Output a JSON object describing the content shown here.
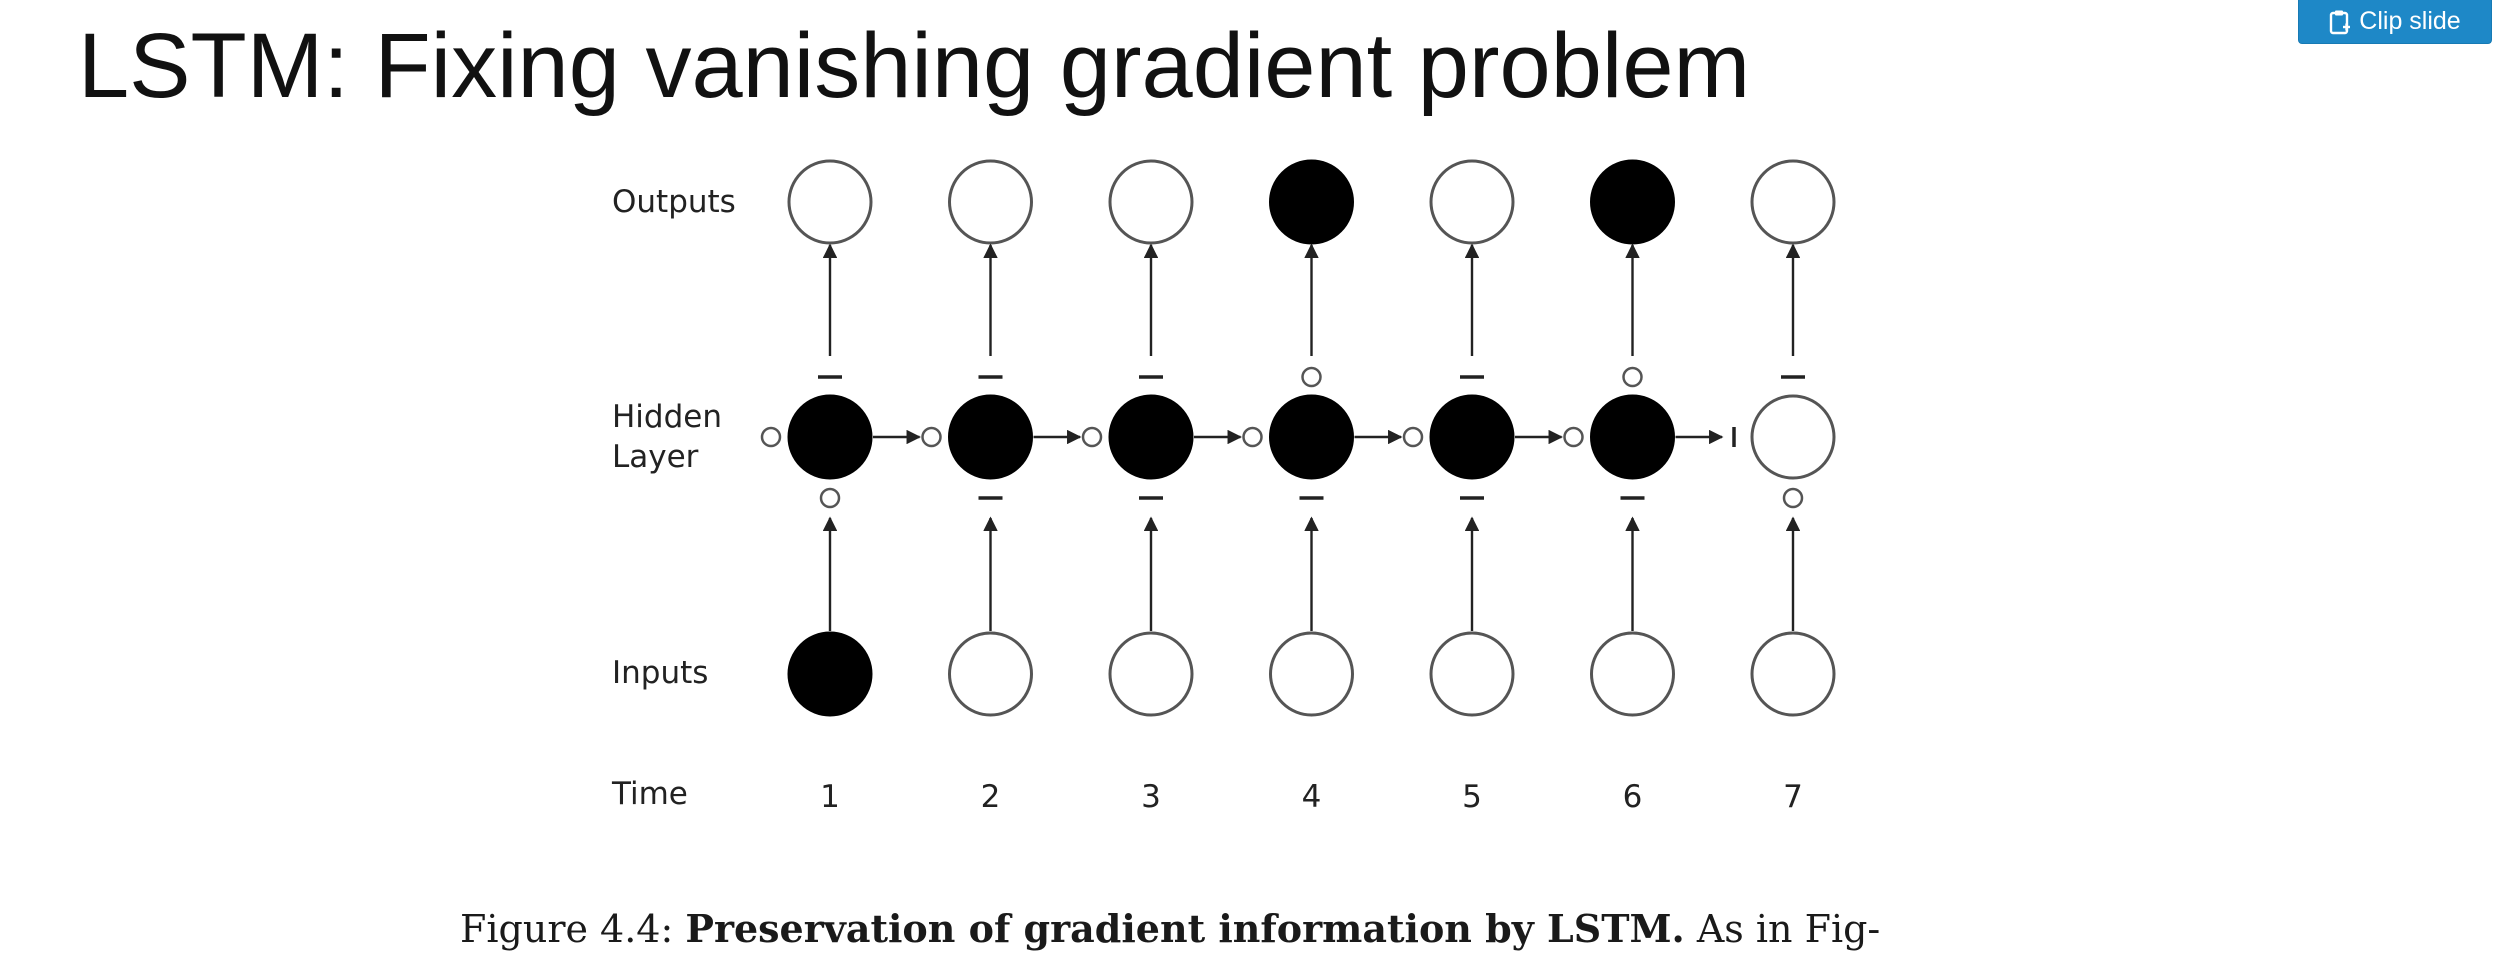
{
  "slide": {
    "title": "LSTM: Fixing vanishing gradient problem"
  },
  "clip_button": {
    "label": "Clip slide",
    "icon": "clipboard-plus-icon",
    "color": "#1e88c7"
  },
  "diagram": {
    "row_labels": {
      "outputs": "Outputs",
      "hidden_line1": "Hidden",
      "hidden_line2": "Layer",
      "inputs": "Inputs",
      "time": "Time"
    },
    "timesteps": [
      {
        "time": "1",
        "output_filled": false,
        "hidden_filled": true,
        "input_filled": true,
        "output_gate": "closed",
        "input_gate": "open",
        "forget_gate": "open"
      },
      {
        "time": "2",
        "output_filled": false,
        "hidden_filled": true,
        "input_filled": false,
        "output_gate": "closed",
        "input_gate": "closed",
        "forget_gate": "open"
      },
      {
        "time": "3",
        "output_filled": false,
        "hidden_filled": true,
        "input_filled": false,
        "output_gate": "closed",
        "input_gate": "closed",
        "forget_gate": "open"
      },
      {
        "time": "4",
        "output_filled": true,
        "hidden_filled": true,
        "input_filled": false,
        "output_gate": "open",
        "input_gate": "closed",
        "forget_gate": "open"
      },
      {
        "time": "5",
        "output_filled": false,
        "hidden_filled": true,
        "input_filled": false,
        "output_gate": "closed",
        "input_gate": "closed",
        "forget_gate": "open"
      },
      {
        "time": "6",
        "output_filled": true,
        "hidden_filled": true,
        "input_filled": false,
        "output_gate": "open",
        "input_gate": "closed",
        "forget_gate": "open"
      },
      {
        "time": "7",
        "output_filled": false,
        "hidden_filled": false,
        "input_filled": false,
        "output_gate": "closed",
        "input_gate": "open",
        "forget_gate": "closed"
      }
    ],
    "colors": {
      "filled": "#000000",
      "stroke": "#555555",
      "arrow": "#222222"
    }
  },
  "caption": {
    "prefix": "Figure 4.4: ",
    "bold": "Preservation of gradient information by LSTM.",
    "suffix": " As in Fig-"
  }
}
